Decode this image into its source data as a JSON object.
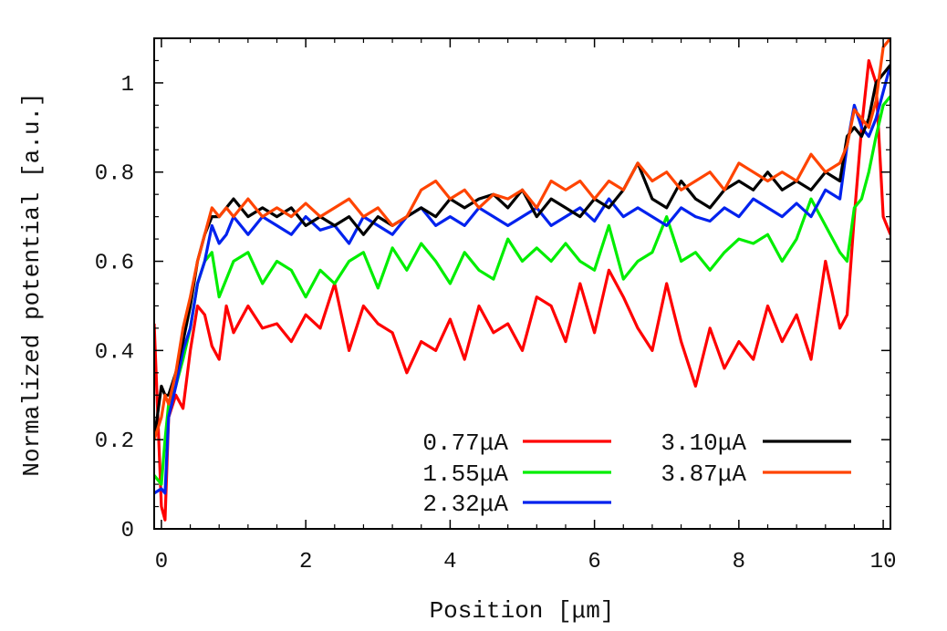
{
  "chart_data": {
    "type": "line",
    "xlabel": "Position [μm]",
    "ylabel": "Normalized potential [a.u.]",
    "xlim": [
      -0.1,
      10.1
    ],
    "ylim": [
      0,
      1.1
    ],
    "x_ticks": [
      0,
      2,
      4,
      6,
      8,
      10
    ],
    "x_tick_labels": [
      "0",
      "2",
      "4",
      "6",
      "8",
      "10"
    ],
    "y_ticks": [
      0,
      0.2,
      0.4,
      0.6,
      0.8,
      1
    ],
    "y_tick_labels": [
      "0",
      "0.2",
      "0.4",
      "0.6",
      "0.8",
      "1"
    ],
    "grid": false,
    "legend_position": "bottom-right",
    "series": [
      {
        "name": "0.77μA",
        "color": "#ff0000",
        "x": [
          -0.1,
          0.0,
          0.05,
          0.1,
          0.2,
          0.3,
          0.4,
          0.5,
          0.6,
          0.7,
          0.8,
          0.9,
          1.0,
          1.2,
          1.4,
          1.6,
          1.8,
          2.0,
          2.2,
          2.4,
          2.6,
          2.8,
          3.0,
          3.2,
          3.4,
          3.6,
          3.8,
          4.0,
          4.2,
          4.4,
          4.6,
          4.8,
          5.0,
          5.2,
          5.4,
          5.6,
          5.8,
          6.0,
          6.2,
          6.4,
          6.6,
          6.8,
          7.0,
          7.2,
          7.4,
          7.6,
          7.8,
          8.0,
          8.2,
          8.4,
          8.6,
          8.8,
          9.0,
          9.2,
          9.4,
          9.5,
          9.6,
          9.7,
          9.8,
          9.9,
          10.0,
          10.1
        ],
        "y": [
          0.46,
          0.05,
          0.02,
          0.25,
          0.3,
          0.27,
          0.4,
          0.5,
          0.48,
          0.41,
          0.38,
          0.5,
          0.44,
          0.5,
          0.45,
          0.46,
          0.42,
          0.48,
          0.45,
          0.55,
          0.4,
          0.5,
          0.46,
          0.44,
          0.35,
          0.42,
          0.4,
          0.47,
          0.38,
          0.5,
          0.44,
          0.46,
          0.4,
          0.52,
          0.5,
          0.42,
          0.55,
          0.44,
          0.58,
          0.52,
          0.45,
          0.4,
          0.55,
          0.42,
          0.32,
          0.45,
          0.36,
          0.42,
          0.38,
          0.5,
          0.42,
          0.48,
          0.38,
          0.6,
          0.45,
          0.48,
          0.7,
          0.9,
          1.05,
          1.0,
          0.7,
          0.66
        ]
      },
      {
        "name": "1.55μA",
        "color": "#00ee00",
        "x": [
          -0.1,
          0.0,
          0.05,
          0.1,
          0.2,
          0.3,
          0.4,
          0.5,
          0.6,
          0.7,
          0.8,
          0.9,
          1.0,
          1.2,
          1.4,
          1.6,
          1.8,
          2.0,
          2.2,
          2.4,
          2.6,
          2.8,
          3.0,
          3.2,
          3.4,
          3.6,
          3.8,
          4.0,
          4.2,
          4.4,
          4.6,
          4.8,
          5.0,
          5.2,
          5.4,
          5.6,
          5.8,
          6.0,
          6.2,
          6.4,
          6.6,
          6.8,
          7.0,
          7.2,
          7.4,
          7.6,
          7.8,
          8.0,
          8.2,
          8.4,
          8.6,
          8.8,
          9.0,
          9.2,
          9.4,
          9.5,
          9.6,
          9.7,
          9.8,
          9.9,
          10.0,
          10.1
        ],
        "y": [
          0.12,
          0.1,
          0.2,
          0.28,
          0.32,
          0.38,
          0.45,
          0.55,
          0.6,
          0.62,
          0.52,
          0.56,
          0.6,
          0.62,
          0.55,
          0.6,
          0.58,
          0.52,
          0.58,
          0.55,
          0.6,
          0.62,
          0.54,
          0.63,
          0.58,
          0.64,
          0.6,
          0.55,
          0.62,
          0.58,
          0.56,
          0.65,
          0.6,
          0.63,
          0.6,
          0.64,
          0.6,
          0.58,
          0.68,
          0.56,
          0.6,
          0.62,
          0.7,
          0.6,
          0.62,
          0.58,
          0.62,
          0.65,
          0.64,
          0.66,
          0.6,
          0.65,
          0.74,
          0.68,
          0.62,
          0.6,
          0.72,
          0.74,
          0.8,
          0.88,
          0.95,
          0.97
        ]
      },
      {
        "name": "2.32μA",
        "color": "#0022ee",
        "x": [
          -0.1,
          0.0,
          0.05,
          0.1,
          0.2,
          0.3,
          0.4,
          0.5,
          0.6,
          0.7,
          0.8,
          0.9,
          1.0,
          1.2,
          1.4,
          1.6,
          1.8,
          2.0,
          2.2,
          2.4,
          2.6,
          2.8,
          3.0,
          3.2,
          3.4,
          3.6,
          3.8,
          4.0,
          4.2,
          4.4,
          4.6,
          4.8,
          5.0,
          5.2,
          5.4,
          5.6,
          5.8,
          6.0,
          6.2,
          6.4,
          6.6,
          6.8,
          7.0,
          7.2,
          7.4,
          7.6,
          7.8,
          8.0,
          8.2,
          8.4,
          8.6,
          8.8,
          9.0,
          9.2,
          9.4,
          9.5,
          9.6,
          9.7,
          9.8,
          9.9,
          10.0,
          10.1
        ],
        "y": [
          0.08,
          0.09,
          0.08,
          0.25,
          0.32,
          0.4,
          0.45,
          0.55,
          0.6,
          0.68,
          0.64,
          0.66,
          0.7,
          0.66,
          0.7,
          0.68,
          0.66,
          0.7,
          0.67,
          0.68,
          0.64,
          0.7,
          0.68,
          0.66,
          0.7,
          0.72,
          0.68,
          0.7,
          0.68,
          0.72,
          0.7,
          0.68,
          0.7,
          0.72,
          0.68,
          0.7,
          0.72,
          0.69,
          0.74,
          0.7,
          0.72,
          0.7,
          0.68,
          0.72,
          0.7,
          0.69,
          0.72,
          0.7,
          0.74,
          0.72,
          0.7,
          0.73,
          0.7,
          0.76,
          0.74,
          0.86,
          0.95,
          0.9,
          0.88,
          0.92,
          0.98,
          1.04
        ]
      },
      {
        "name": "3.10μA",
        "color": "#000000",
        "x": [
          -0.1,
          0.0,
          0.05,
          0.1,
          0.2,
          0.3,
          0.4,
          0.5,
          0.6,
          0.7,
          0.8,
          0.9,
          1.0,
          1.2,
          1.4,
          1.6,
          1.8,
          2.0,
          2.2,
          2.4,
          2.6,
          2.8,
          3.0,
          3.2,
          3.4,
          3.6,
          3.8,
          4.0,
          4.2,
          4.4,
          4.6,
          4.8,
          5.0,
          5.2,
          5.4,
          5.6,
          5.8,
          6.0,
          6.2,
          6.4,
          6.6,
          6.8,
          7.0,
          7.2,
          7.4,
          7.6,
          7.8,
          8.0,
          8.2,
          8.4,
          8.6,
          8.8,
          9.0,
          9.2,
          9.4,
          9.5,
          9.6,
          9.7,
          9.8,
          9.9,
          10.0,
          10.1
        ],
        "y": [
          0.2,
          0.32,
          0.3,
          0.3,
          0.35,
          0.42,
          0.5,
          0.6,
          0.66,
          0.7,
          0.7,
          0.72,
          0.74,
          0.7,
          0.72,
          0.7,
          0.72,
          0.68,
          0.7,
          0.68,
          0.7,
          0.66,
          0.7,
          0.68,
          0.7,
          0.72,
          0.7,
          0.74,
          0.72,
          0.74,
          0.75,
          0.72,
          0.76,
          0.7,
          0.74,
          0.72,
          0.7,
          0.74,
          0.72,
          0.76,
          0.82,
          0.74,
          0.72,
          0.78,
          0.74,
          0.72,
          0.76,
          0.78,
          0.76,
          0.8,
          0.76,
          0.78,
          0.76,
          0.8,
          0.78,
          0.88,
          0.9,
          0.88,
          0.92,
          1.0,
          1.02,
          1.04
        ]
      },
      {
        "name": "3.87μA",
        "color": "#ff4400",
        "x": [
          -0.1,
          0.0,
          0.05,
          0.1,
          0.2,
          0.3,
          0.4,
          0.5,
          0.6,
          0.7,
          0.8,
          0.9,
          1.0,
          1.2,
          1.4,
          1.6,
          1.8,
          2.0,
          2.2,
          2.4,
          2.6,
          2.8,
          3.0,
          3.2,
          3.4,
          3.6,
          3.8,
          4.0,
          4.2,
          4.4,
          4.6,
          4.8,
          5.0,
          5.2,
          5.4,
          5.6,
          5.8,
          6.0,
          6.2,
          6.4,
          6.6,
          6.8,
          7.0,
          7.2,
          7.4,
          7.6,
          7.8,
          8.0,
          8.2,
          8.4,
          8.6,
          8.8,
          9.0,
          9.2,
          9.4,
          9.5,
          9.6,
          9.7,
          9.8,
          9.9,
          10.0,
          10.1
        ],
        "y": [
          0.2,
          0.25,
          0.3,
          0.28,
          0.35,
          0.45,
          0.52,
          0.6,
          0.66,
          0.72,
          0.7,
          0.72,
          0.7,
          0.74,
          0.7,
          0.72,
          0.7,
          0.73,
          0.7,
          0.72,
          0.74,
          0.7,
          0.72,
          0.68,
          0.7,
          0.76,
          0.78,
          0.74,
          0.76,
          0.72,
          0.75,
          0.74,
          0.76,
          0.72,
          0.78,
          0.76,
          0.78,
          0.74,
          0.78,
          0.76,
          0.82,
          0.78,
          0.8,
          0.76,
          0.78,
          0.8,
          0.76,
          0.82,
          0.8,
          0.78,
          0.8,
          0.78,
          0.84,
          0.8,
          0.82,
          0.86,
          0.94,
          0.92,
          0.9,
          0.96,
          1.08,
          1.1
        ]
      }
    ]
  }
}
